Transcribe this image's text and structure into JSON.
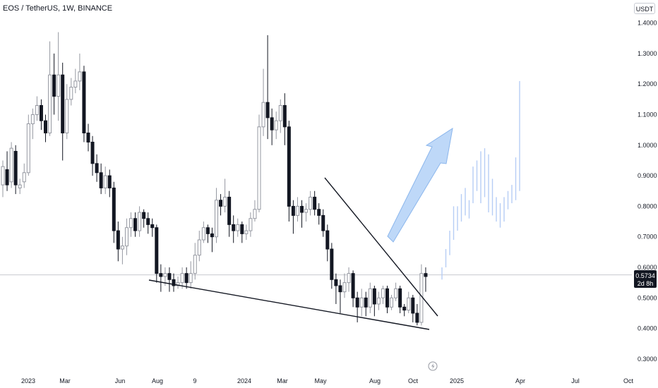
{
  "chart_data": {
    "type": "candlestick",
    "title": "EOS / TetherUS, 1W, BINANCE",
    "currency": "USDT",
    "y_ticks": [
      "1.4000",
      "1.3000",
      "1.2000",
      "1.1000",
      "1.0000",
      "0.9000",
      "0.8000",
      "0.7000",
      "0.6000",
      "0.5000",
      "0.4000",
      "0.3000"
    ],
    "x_ticks": [
      "2023",
      "Mar",
      "Jun",
      "Aug",
      "9",
      "2024",
      "Mar",
      "May",
      "Aug",
      "Oct",
      "2025",
      "Apr",
      "Jul",
      "Oct"
    ],
    "ylim": [
      0.3,
      1.4
    ],
    "last_price": "0.5734",
    "countdown": "2d 8h",
    "candles": [
      [
        0.87,
        0.93,
        0.83,
        0.95
      ],
      [
        0.92,
        0.87,
        0.85,
        0.98
      ],
      [
        0.88,
        0.99,
        0.86,
        1.01
      ],
      [
        0.98,
        0.87,
        0.84,
        1.0
      ],
      [
        0.86,
        0.87,
        0.84,
        0.89
      ],
      [
        0.88,
        0.91,
        0.86,
        0.94
      ],
      [
        0.91,
        1.07,
        0.9,
        1.1
      ],
      [
        1.07,
        1.1,
        1.02,
        1.12
      ],
      [
        1.1,
        1.13,
        1.08,
        1.16
      ],
      [
        1.13,
        1.08,
        1.05,
        1.15
      ],
      [
        1.08,
        1.04,
        1.01,
        1.1
      ],
      [
        1.04,
        1.23,
        1.03,
        1.34
      ],
      [
        1.23,
        1.16,
        1.1,
        1.3
      ],
      [
        1.16,
        1.23,
        1.08,
        1.37
      ],
      [
        1.23,
        1.04,
        0.95,
        1.27
      ],
      [
        1.04,
        1.15,
        1.02,
        1.2
      ],
      [
        1.15,
        1.19,
        1.13,
        1.22
      ],
      [
        1.19,
        1.21,
        1.17,
        1.25
      ],
      [
        1.21,
        1.24,
        1.18,
        1.3
      ],
      [
        1.24,
        1.04,
        1.01,
        1.26
      ],
      [
        1.04,
        1.01,
        0.98,
        1.07
      ],
      [
        1.01,
        0.94,
        0.9,
        1.03
      ],
      [
        0.94,
        0.91,
        0.88,
        0.97
      ],
      [
        0.91,
        0.86,
        0.84,
        0.94
      ],
      [
        0.86,
        0.9,
        0.84,
        0.93
      ],
      [
        0.9,
        0.86,
        0.83,
        0.92
      ],
      [
        0.86,
        0.72,
        0.68,
        0.88
      ],
      [
        0.72,
        0.66,
        0.62,
        0.75
      ],
      [
        0.66,
        0.67,
        0.61,
        0.7
      ],
      [
        0.67,
        0.73,
        0.64,
        0.76
      ],
      [
        0.73,
        0.76,
        0.7,
        0.78
      ],
      [
        0.76,
        0.72,
        0.7,
        0.78
      ],
      [
        0.72,
        0.78,
        0.7,
        0.8
      ],
      [
        0.78,
        0.76,
        0.73,
        0.79
      ],
      [
        0.76,
        0.74,
        0.71,
        0.78
      ],
      [
        0.74,
        0.73,
        0.7,
        0.76
      ],
      [
        0.73,
        0.58,
        0.55,
        0.74
      ],
      [
        0.58,
        0.57,
        0.52,
        0.61
      ],
      [
        0.57,
        0.58,
        0.54,
        0.6
      ],
      [
        0.58,
        0.56,
        0.52,
        0.6
      ],
      [
        0.56,
        0.54,
        0.52,
        0.58
      ],
      [
        0.54,
        0.55,
        0.53,
        0.57
      ],
      [
        0.55,
        0.58,
        0.53,
        0.6
      ],
      [
        0.58,
        0.55,
        0.53,
        0.6
      ],
      [
        0.55,
        0.58,
        0.53,
        0.62
      ],
      [
        0.58,
        0.64,
        0.56,
        0.68
      ],
      [
        0.64,
        0.69,
        0.62,
        0.72
      ],
      [
        0.69,
        0.73,
        0.68,
        0.75
      ],
      [
        0.73,
        0.71,
        0.68,
        0.74
      ],
      [
        0.71,
        0.7,
        0.65,
        0.73
      ],
      [
        0.7,
        0.82,
        0.68,
        0.86
      ],
      [
        0.82,
        0.8,
        0.77,
        0.84
      ],
      [
        0.8,
        0.83,
        0.78,
        0.89
      ],
      [
        0.83,
        0.74,
        0.7,
        0.85
      ],
      [
        0.74,
        0.72,
        0.68,
        0.77
      ],
      [
        0.72,
        0.74,
        0.7,
        0.76
      ],
      [
        0.74,
        0.71,
        0.68,
        0.75
      ],
      [
        0.71,
        0.72,
        0.69,
        0.74
      ],
      [
        0.72,
        0.76,
        0.7,
        0.78
      ],
      [
        0.76,
        0.79,
        0.75,
        0.82
      ],
      [
        0.79,
        1.06,
        0.78,
        1.1
      ],
      [
        1.06,
        1.14,
        1.03,
        1.25
      ],
      [
        1.14,
        1.09,
        1.02,
        1.36
      ],
      [
        1.09,
        1.05,
        1.0,
        1.12
      ],
      [
        1.05,
        1.08,
        1.02,
        1.11
      ],
      [
        1.08,
        1.13,
        1.04,
        1.15
      ],
      [
        1.13,
        1.06,
        1.0,
        1.17
      ],
      [
        1.06,
        0.8,
        0.75,
        1.08
      ],
      [
        0.8,
        0.77,
        0.71,
        0.82
      ],
      [
        0.77,
        0.8,
        0.75,
        0.83
      ],
      [
        0.8,
        0.78,
        0.73,
        0.82
      ],
      [
        0.78,
        0.79,
        0.75,
        0.81
      ],
      [
        0.79,
        0.83,
        0.77,
        0.85
      ],
      [
        0.83,
        0.79,
        0.77,
        0.85
      ],
      [
        0.79,
        0.77,
        0.74,
        0.81
      ],
      [
        0.77,
        0.72,
        0.7,
        0.79
      ],
      [
        0.72,
        0.66,
        0.62,
        0.74
      ],
      [
        0.66,
        0.56,
        0.53,
        0.68
      ],
      [
        0.56,
        0.54,
        0.48,
        0.58
      ],
      [
        0.54,
        0.52,
        0.45,
        0.56
      ],
      [
        0.52,
        0.55,
        0.5,
        0.58
      ],
      [
        0.55,
        0.58,
        0.52,
        0.6
      ],
      [
        0.58,
        0.5,
        0.47,
        0.59
      ],
      [
        0.5,
        0.47,
        0.42,
        0.52
      ],
      [
        0.47,
        0.5,
        0.44,
        0.53
      ],
      [
        0.5,
        0.47,
        0.44,
        0.52
      ],
      [
        0.47,
        0.53,
        0.45,
        0.55
      ],
      [
        0.53,
        0.48,
        0.44,
        0.54
      ],
      [
        0.48,
        0.5,
        0.46,
        0.52
      ],
      [
        0.5,
        0.53,
        0.48,
        0.54
      ],
      [
        0.53,
        0.47,
        0.45,
        0.54
      ],
      [
        0.47,
        0.5,
        0.46,
        0.51
      ],
      [
        0.5,
        0.53,
        0.49,
        0.55
      ],
      [
        0.53,
        0.47,
        0.45,
        0.54
      ],
      [
        0.47,
        0.46,
        0.44,
        0.48
      ],
      [
        0.46,
        0.5,
        0.45,
        0.52
      ],
      [
        0.5,
        0.45,
        0.42,
        0.51
      ],
      [
        0.45,
        0.42,
        0.41,
        0.48
      ],
      [
        0.42,
        0.58,
        0.41,
        0.61
      ],
      [
        0.58,
        0.57,
        0.52,
        0.6
      ]
    ],
    "projection_bars": [
      [
        0.56,
        0.6
      ],
      [
        0.6,
        0.66
      ],
      [
        0.64,
        0.72
      ],
      [
        0.69,
        0.8
      ],
      [
        0.72,
        0.8
      ],
      [
        0.75,
        0.84
      ],
      [
        0.77,
        0.86
      ],
      [
        0.76,
        0.82
      ],
      [
        0.81,
        0.93
      ],
      [
        0.85,
        0.95
      ],
      [
        0.81,
        0.98
      ],
      [
        0.83,
        0.99
      ],
      [
        0.78,
        0.97
      ],
      [
        0.77,
        0.89
      ],
      [
        0.75,
        0.83
      ],
      [
        0.73,
        0.81
      ],
      [
        0.75,
        0.83
      ],
      [
        0.79,
        0.85
      ],
      [
        0.81,
        0.87
      ],
      [
        0.82,
        0.96
      ],
      [
        0.85,
        1.21
      ]
    ],
    "colors": {
      "bull": "#9598a1",
      "bear": "#131722",
      "projection": "#b7cdf5",
      "arrow_fill": "#a8cbf5",
      "arrow_stroke": "#8bb6ec",
      "price_label_bg": "#131722"
    }
  }
}
